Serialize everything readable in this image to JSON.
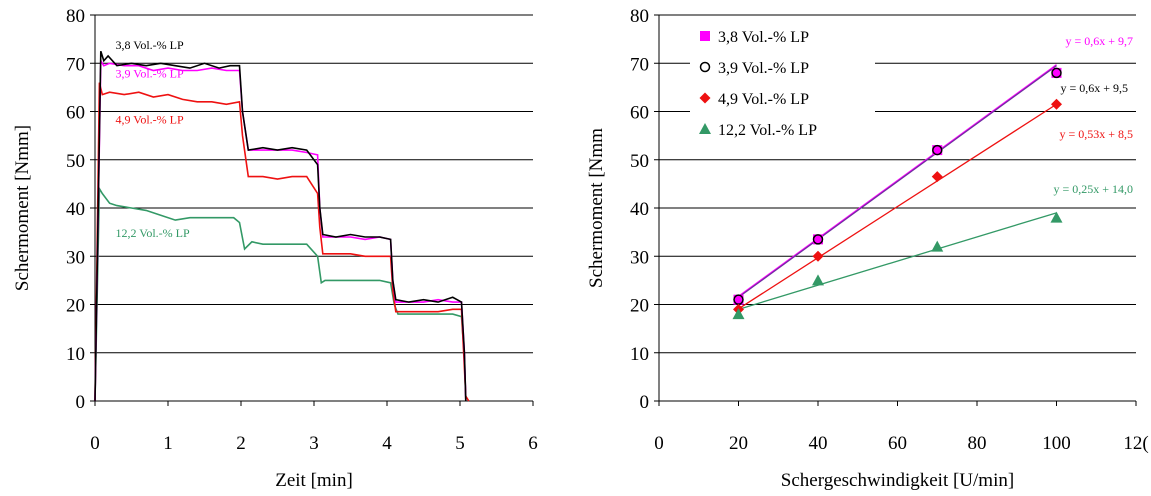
{
  "chart_data": [
    {
      "type": "line",
      "xlabel": "Zeit [min]",
      "ylabel": "Schermoment  [Nmm]",
      "xlim": [
        0,
        6
      ],
      "ylim": [
        0,
        80
      ],
      "xticks": [
        "0",
        "1",
        "2",
        "3",
        "4",
        "5",
        "6"
      ],
      "yticks": [
        "0",
        "10",
        "20",
        "30",
        "40",
        "50",
        "60",
        "70",
        "80"
      ],
      "grid": "horizontal",
      "annotations": [
        "3,8 Vol.-% LP",
        "3,9 Vol.-% LP",
        "4,9 Vol.-% LP",
        "12,2 Vol.-% LP"
      ],
      "series": [
        {
          "name": "3,8 Vol.-% LP",
          "color": "#000000",
          "x": [
            0,
            0.08,
            0.12,
            0.18,
            0.3,
            0.5,
            0.7,
            0.9,
            1.1,
            1.3,
            1.5,
            1.7,
            1.85,
            1.98,
            2.02,
            2.1,
            2.3,
            2.5,
            2.7,
            2.9,
            3.05,
            3.08,
            3.12,
            3.3,
            3.5,
            3.7,
            3.9,
            4.05,
            4.08,
            4.12,
            4.3,
            4.5,
            4.7,
            4.9,
            5.02,
            5.06,
            5.08
          ],
          "y": [
            0,
            72.5,
            70.5,
            71.5,
            69.5,
            70,
            69.5,
            70,
            69.5,
            69,
            70,
            69,
            69.5,
            69.5,
            60,
            52,
            52.5,
            52,
            52.5,
            52,
            49,
            40,
            34.5,
            34,
            34.5,
            34,
            34,
            33.5,
            25,
            21,
            20.5,
            21,
            20.5,
            21.5,
            20.5,
            10,
            0
          ]
        },
        {
          "name": "3,9 Vol.-% LP",
          "color": "#ff00ff",
          "x": [
            0,
            0.08,
            0.12,
            0.2,
            0.4,
            0.6,
            0.8,
            1.0,
            1.2,
            1.4,
            1.6,
            1.8,
            1.98,
            2.02,
            2.1,
            2.3,
            2.5,
            2.7,
            2.9,
            3.05,
            3.08,
            3.12,
            3.3,
            3.5,
            3.7,
            3.9,
            4.05,
            4.08,
            4.12,
            4.3,
            4.5,
            4.7,
            4.9,
            5.02,
            5.06,
            5.08
          ],
          "y": [
            0,
            70.5,
            69.5,
            70,
            69.5,
            69.5,
            68.5,
            69,
            68.5,
            68.5,
            69,
            68.5,
            68.5,
            60,
            52,
            52,
            52,
            52,
            51.5,
            51,
            40,
            34,
            34,
            34,
            33.5,
            34,
            33.5,
            25,
            20.5,
            20.5,
            20.5,
            21,
            20.5,
            20.5,
            10,
            0
          ]
        },
        {
          "name": "4,9 Vol.-% LP",
          "color": "#ee1111",
          "x": [
            0,
            0.06,
            0.1,
            0.2,
            0.4,
            0.6,
            0.8,
            1.0,
            1.2,
            1.4,
            1.6,
            1.8,
            1.98,
            2.02,
            2.1,
            2.3,
            2.5,
            2.7,
            2.9,
            3.05,
            3.08,
            3.12,
            3.3,
            3.5,
            3.7,
            3.9,
            4.05,
            4.08,
            4.12,
            4.3,
            4.5,
            4.7,
            4.9,
            5.02,
            5.08,
            5.12
          ],
          "y": [
            0,
            66,
            63.5,
            64,
            63.5,
            64,
            63,
            63.5,
            62.5,
            62,
            62,
            61.5,
            62,
            55,
            46.5,
            46.5,
            46,
            46.5,
            46.5,
            43,
            36,
            30.5,
            30.5,
            30.5,
            30,
            30,
            30,
            23,
            18.5,
            18.5,
            18.5,
            18.5,
            19,
            19,
            1,
            0
          ]
        },
        {
          "name": "12,2 Vol.-% LP",
          "color": "#339966",
          "x": [
            0,
            0.06,
            0.1,
            0.2,
            0.3,
            0.5,
            0.7,
            0.9,
            1.1,
            1.3,
            1.5,
            1.7,
            1.9,
            1.98,
            2.05,
            2.15,
            2.3,
            2.5,
            2.7,
            2.9,
            3.05,
            3.1,
            3.15,
            3.3,
            3.5,
            3.7,
            3.9,
            4.05,
            4.1,
            4.15,
            4.3,
            4.5,
            4.7,
            4.9,
            5.02,
            5.06,
            5.08
          ],
          "y": [
            0,
            44,
            43,
            41,
            40.5,
            40,
            39.5,
            38.5,
            37.5,
            38,
            38,
            38,
            38,
            37,
            31.5,
            33,
            32.5,
            32.5,
            32.5,
            32.5,
            30,
            24.5,
            25,
            25,
            25,
            25,
            25,
            24.5,
            20,
            18,
            18,
            18,
            18,
            18,
            17.5,
            9,
            0
          ]
        }
      ]
    },
    {
      "type": "scatter",
      "xlabel": "Schergeschwindigkeit [U/min]",
      "ylabel": "Schermoment  [Nmm",
      "xlim": [
        0,
        120
      ],
      "ylim": [
        0,
        80
      ],
      "xticks": [
        "0",
        "20",
        "40",
        "60",
        "80",
        "100",
        "12("
      ],
      "yticks": [
        "0",
        "10",
        "20",
        "30",
        "40",
        "50",
        "60",
        "70",
        "80"
      ],
      "grid": "horizontal",
      "legend_position": "top-left",
      "series": [
        {
          "name": "3,8 Vol.-% LP",
          "color": "#ff00ff",
          "marker": "square",
          "x": [
            20,
            40,
            70,
            100
          ],
          "y": [
            21,
            33.5,
            52,
            68
          ],
          "trendline": {
            "label": "y = 0,6x + 9,7",
            "slope": 0.6,
            "intercept": 9.7
          }
        },
        {
          "name": "3,9 Vol.-% LP",
          "color": "#000000",
          "marker": "circle-open",
          "x": [
            20,
            40,
            70,
            100
          ],
          "y": [
            21,
            33.5,
            52,
            68
          ],
          "trendline": {
            "label": "y = 0,6x + 9,5",
            "slope": 0.6,
            "intercept": 9.5
          }
        },
        {
          "name": "4,9 Vol.-% LP",
          "color": "#ee1111",
          "marker": "diamond",
          "x": [
            20,
            40,
            70,
            100
          ],
          "y": [
            19,
            30,
            46.5,
            61.5
          ],
          "trendline": {
            "label": "y = 0,53x + 8,5",
            "slope": 0.53,
            "intercept": 8.5
          }
        },
        {
          "name": "12,2 Vol.-% LP",
          "color": "#339966",
          "marker": "triangle",
          "x": [
            20,
            40,
            70,
            100
          ],
          "y": [
            18,
            25,
            32,
            38
          ],
          "trendline": {
            "label": "y = 0,25x + 14,0",
            "slope": 0.25,
            "intercept": 14.0
          }
        }
      ]
    }
  ]
}
